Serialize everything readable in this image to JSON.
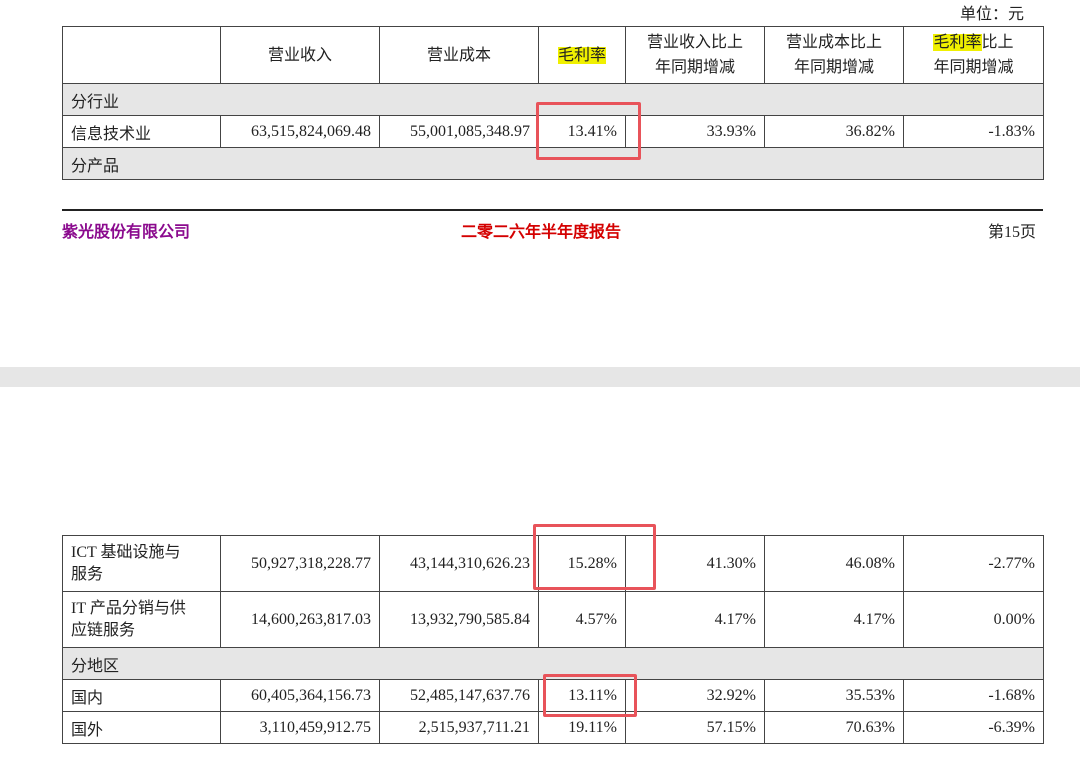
{
  "unit_label": "单位：元",
  "headers": {
    "revenue": "营业收入",
    "cost": "营业成本",
    "margin": "毛利率",
    "revenue_yoy_1": "营业收入比上",
    "revenue_yoy_2": "年同期增减",
    "cost_yoy_1": "营业成本比上",
    "cost_yoy_2": "年同期增减",
    "margin_yoy_hl": "毛利率",
    "margin_yoy_rest": "比上",
    "margin_yoy_2": "年同期增减"
  },
  "highlight_color": "#f0f000",
  "box_color": "#e8535a",
  "sections": {
    "industry": "分行业",
    "product": "分产品",
    "region": "分地区"
  },
  "rows": {
    "it": {
      "name": "信息技术业",
      "revenue": "63,515,824,069.48",
      "cost": "55,001,085,348.97",
      "margin": "13.41%",
      "rev_yoy": "33.93%",
      "cost_yoy": "36.82%",
      "margin_yoy": "-1.83%"
    },
    "ict": {
      "name_1": "ICT 基础设施与",
      "name_2": "服务",
      "revenue": "50,927,318,228.77",
      "cost": "43,144,310,626.23",
      "margin": "15.28%",
      "rev_yoy": "41.30%",
      "cost_yoy": "46.08%",
      "margin_yoy": "-2.77%"
    },
    "itp": {
      "name_1": "IT 产品分销与供",
      "name_2": "应链服务",
      "revenue": "14,600,263,817.03",
      "cost": "13,932,790,585.84",
      "margin": "4.57%",
      "rev_yoy": "4.17%",
      "cost_yoy": "4.17%",
      "margin_yoy": "0.00%"
    },
    "domestic": {
      "name": "国内",
      "revenue": "60,405,364,156.73",
      "cost": "52,485,147,637.76",
      "margin": "13.11%",
      "rev_yoy": "32.92%",
      "cost_yoy": "35.53%",
      "margin_yoy": "-1.68%"
    },
    "overseas": {
      "name": "国外",
      "revenue": "3,110,459,912.75",
      "cost": "2,515,937,711.21",
      "margin": "19.11%",
      "rev_yoy": "57.15%",
      "cost_yoy": "70.63%",
      "margin_yoy": "-6.39%"
    }
  },
  "footer": {
    "company": "紫光股份有限公司",
    "report": "二零二六年半年度报告",
    "page": "第15页"
  }
}
